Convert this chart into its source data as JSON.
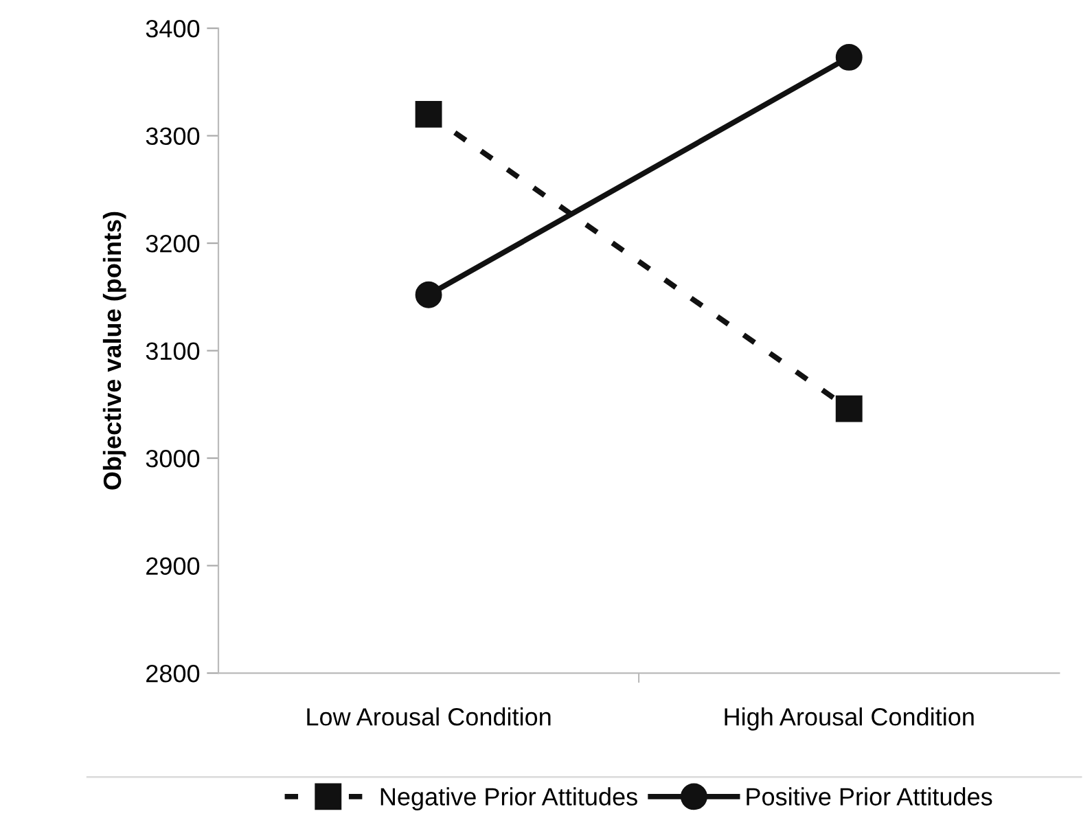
{
  "chart_data": {
    "type": "line",
    "ylabel": "Objective value (points)",
    "categories": [
      "Low Arousal Condition",
      "High Arousal Condition"
    ],
    "series": [
      {
        "name": "Negative Prior Attitudes",
        "color": "#111111",
        "values": [
          3320,
          3046
        ],
        "marker": "square",
        "line_style": "dashed"
      },
      {
        "name": "Positive Prior Attitudes",
        "color": "#111111",
        "values": [
          3152,
          3373
        ],
        "marker": "circle",
        "line_style": "solid"
      }
    ],
    "ylim": [
      2800,
      3400
    ],
    "yticks": [
      2800,
      2900,
      3000,
      3100,
      3200,
      3300,
      3400
    ],
    "grid": false,
    "legend": "bottom"
  }
}
